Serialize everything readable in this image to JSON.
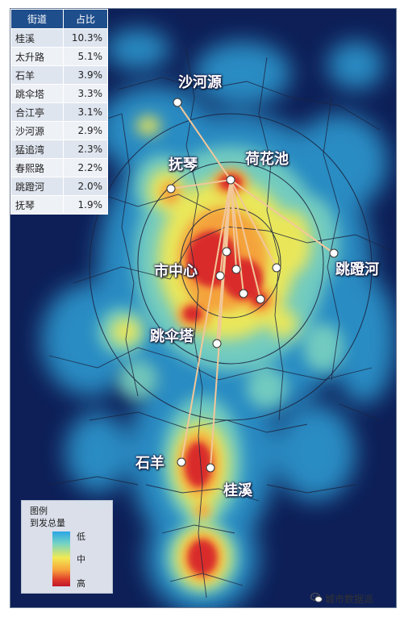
{
  "table": {
    "headers": [
      "街道",
      "占比"
    ],
    "rows": [
      {
        "name": "桂溪",
        "pct": "10.3%"
      },
      {
        "name": "太升路",
        "pct": "5.1%"
      },
      {
        "name": "石羊",
        "pct": "3.9%"
      },
      {
        "name": "跳伞塔",
        "pct": "3.3%"
      },
      {
        "name": "合江亭",
        "pct": "3.1%"
      },
      {
        "name": "沙河源",
        "pct": "2.9%"
      },
      {
        "name": "猛追湾",
        "pct": "2.3%"
      },
      {
        "name": "春熙路",
        "pct": "2.2%"
      },
      {
        "name": "跳蹬河",
        "pct": "2.0%"
      },
      {
        "name": "抚琴",
        "pct": "1.9%"
      }
    ]
  },
  "map_labels": {
    "shaheyuan": "沙河源",
    "hehuachi": "荷花池",
    "fuqin": "抚琴",
    "shizhongxin": "市中心",
    "tiaodenghe": "跳蹬河",
    "tiaosanta": "跳伞塔",
    "shiyang": "石羊",
    "guixi": "桂溪"
  },
  "legend": {
    "title": "图例",
    "subtitle": "到发总量",
    "low": "低",
    "mid": "中",
    "high": "高",
    "ramp_colors": [
      "#29a6e6",
      "#74d3c4",
      "#f2ea54",
      "#f7a33b",
      "#de3a2a",
      "#c0182a"
    ]
  },
  "watermark": "城市数据派",
  "colors": {
    "background_low": "#0e1f57",
    "heat_high": "#c0182a",
    "flow_line": "#f2c79a",
    "table_header": "#1f4e8c"
  }
}
